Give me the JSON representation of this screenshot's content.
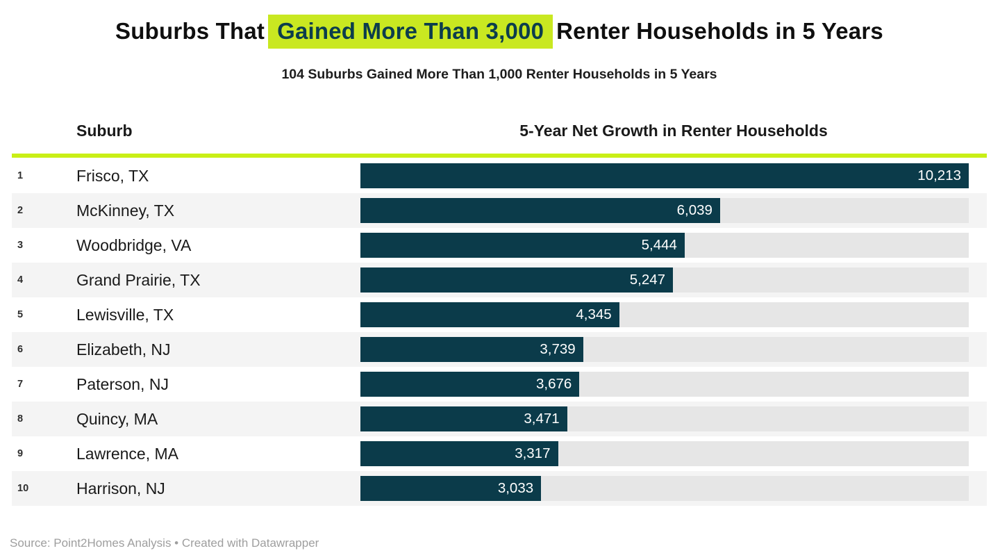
{
  "title": {
    "prefix": "Suburbs That",
    "highlight": "Gained More Than 3,000",
    "suffix": "Renter Households in 5 Years"
  },
  "subtitle": "104 Suburbs Gained More Than 1,000 Renter Households in 5 Years",
  "table": {
    "suburb_header": "Suburb",
    "value_header": "5-Year Net Growth in Renter Households",
    "rows": [
      {
        "rank": "1",
        "suburb": "Frisco, TX",
        "value": 10213,
        "value_label": "10,213"
      },
      {
        "rank": "2",
        "suburb": "McKinney, TX",
        "value": 6039,
        "value_label": "6,039"
      },
      {
        "rank": "3",
        "suburb": "Woodbridge, VA",
        "value": 5444,
        "value_label": "5,444"
      },
      {
        "rank": "4",
        "suburb": "Grand Prairie, TX",
        "value": 5247,
        "value_label": "5,247"
      },
      {
        "rank": "5",
        "suburb": "Lewisville, TX",
        "value": 4345,
        "value_label": "4,345"
      },
      {
        "rank": "6",
        "suburb": "Elizabeth, NJ",
        "value": 3739,
        "value_label": "3,739"
      },
      {
        "rank": "7",
        "suburb": "Paterson, NJ",
        "value": 3676,
        "value_label": "3,676"
      },
      {
        "rank": "8",
        "suburb": "Quincy, MA",
        "value": 3471,
        "value_label": "3,471"
      },
      {
        "rank": "9",
        "suburb": "Lawrence, MA",
        "value": 3317,
        "value_label": "3,317"
      },
      {
        "rank": "10",
        "suburb": "Harrison, NJ",
        "value": 3033,
        "value_label": "3,033"
      }
    ]
  },
  "footer": "Source: Point2Homes Analysis • Created with Datawrapper",
  "colors": {
    "bar": "#0b3b4a",
    "bar_track": "#e6e6e6",
    "row_stripe": "#f4f4f4",
    "highlight_bg": "#c9e821",
    "highlight_text": "#0c3d4c",
    "header_rule": "#c9ef16"
  },
  "chart_data": {
    "type": "bar",
    "orientation": "horizontal",
    "title": "Suburbs That Gained More Than 3,000 Renter Households in 5 Years",
    "subtitle": "104 Suburbs Gained More Than 1,000 Renter Households in 5 Years",
    "categories": [
      "Frisco, TX",
      "McKinney, TX",
      "Woodbridge, VA",
      "Grand Prairie, TX",
      "Lewisville, TX",
      "Elizabeth, NJ",
      "Paterson, NJ",
      "Quincy, MA",
      "Lawrence, MA",
      "Harrison, NJ"
    ],
    "values": [
      10213,
      6039,
      5444,
      5247,
      4345,
      3739,
      3676,
      3471,
      3317,
      3033
    ],
    "xlabel": "5-Year Net Growth in Renter Households",
    "ylabel": "Suburb",
    "xlim": [
      0,
      10213
    ],
    "grid": false,
    "legend": false,
    "data_labels": "inside-end",
    "source": "Point2Homes Analysis",
    "created_with": "Datawrapper"
  }
}
